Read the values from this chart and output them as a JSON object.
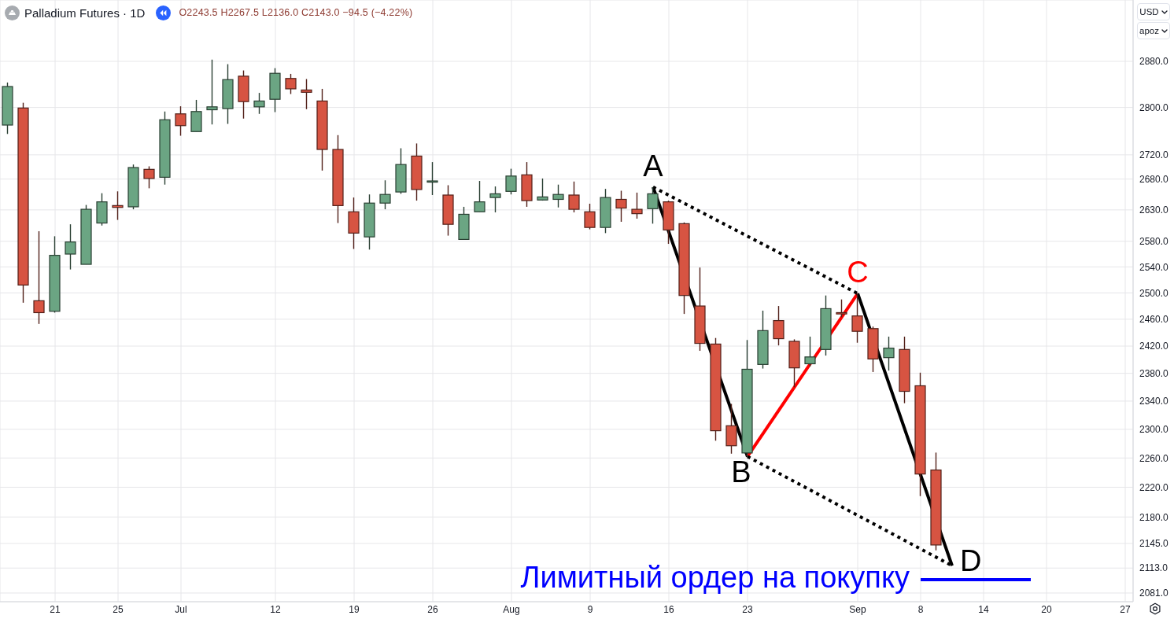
{
  "chart_data": {
    "type": "candlestick",
    "title": "Palladium Futures · 1D",
    "subtitle": "O2243.5 H2267.5 L2136.0 C2143.0 −94.5 (−4.22%)",
    "categories": [
      null,
      null,
      null,
      "21",
      null,
      null,
      null,
      "25",
      null,
      null,
      null,
      "Jul",
      null,
      null,
      null,
      null,
      null,
      "12",
      null,
      null,
      null,
      null,
      "19",
      null,
      null,
      null,
      null,
      "26",
      null,
      null,
      null,
      null,
      "Aug",
      null,
      null,
      null,
      null,
      "9",
      null,
      null,
      null,
      null,
      "16",
      null,
      null,
      null,
      null,
      "23",
      null,
      null,
      null,
      null,
      null,
      null,
      "Sep",
      null,
      null,
      null,
      "8",
      null,
      null,
      null,
      "14",
      null,
      null,
      null,
      "20",
      null,
      null,
      null,
      null,
      "27"
    ],
    "ohlc": [
      [
        2770,
        2843,
        2755,
        2836
      ],
      [
        2799,
        2808,
        2485,
        2512
      ],
      [
        2488,
        2596,
        2453,
        2470
      ],
      [
        2472,
        2588,
        2470,
        2558
      ],
      [
        2560,
        2607,
        2536,
        2579
      ],
      [
        2544,
        2638,
        2544,
        2631
      ],
      [
        2609,
        2657,
        2605,
        2643
      ],
      [
        2637,
        2660,
        2614,
        2634
      ],
      [
        2635,
        2704,
        2631,
        2699
      ],
      [
        2696,
        2701,
        2665,
        2681
      ],
      [
        2683,
        2793,
        2671,
        2779
      ],
      [
        2789,
        2802,
        2752,
        2769
      ],
      [
        2759,
        2813,
        2759,
        2793
      ],
      [
        2796,
        2883,
        2771,
        2801
      ],
      [
        2798,
        2875,
        2772,
        2848
      ],
      [
        2854,
        2864,
        2781,
        2810
      ],
      [
        2801,
        2825,
        2789,
        2811
      ],
      [
        2814,
        2868,
        2792,
        2859
      ],
      [
        2850,
        2858,
        2823,
        2832
      ],
      [
        2830,
        2849,
        2797,
        2826
      ],
      [
        2811,
        2832,
        2694,
        2729
      ],
      [
        2729,
        2753,
        2609,
        2637
      ],
      [
        2627,
        2650,
        2568,
        2593
      ],
      [
        2587,
        2655,
        2567,
        2641
      ],
      [
        2641,
        2678,
        2631,
        2655
      ],
      [
        2659,
        2731,
        2656,
        2704
      ],
      [
        2718,
        2739,
        2645,
        2663
      ],
      [
        2675,
        2708,
        2654,
        2677
      ],
      [
        2654,
        2670,
        2589,
        2607
      ],
      [
        2583,
        2635,
        2583,
        2623
      ],
      [
        2627,
        2677,
        2627,
        2643
      ],
      [
        2650,
        2668,
        2626,
        2656
      ],
      [
        2660,
        2697,
        2655,
        2685
      ],
      [
        2687,
        2708,
        2635,
        2645
      ],
      [
        2646,
        2681,
        2645,
        2651
      ],
      [
        2647,
        2671,
        2634,
        2655
      ],
      [
        2654,
        2676,
        2626,
        2631
      ],
      [
        2627,
        2640,
        2599,
        2602
      ],
      [
        2602,
        2664,
        2593,
        2650
      ],
      [
        2647,
        2661,
        2611,
        2633
      ],
      [
        2631,
        2658,
        2616,
        2624
      ],
      [
        2632,
        2667,
        2608,
        2656
      ],
      [
        2643,
        2645,
        2576,
        2598
      ],
      [
        2608,
        2610,
        2468,
        2496
      ],
      [
        2480,
        2539,
        2413,
        2424
      ],
      [
        2423,
        2432,
        2284,
        2298
      ],
      [
        2305,
        2336,
        2266,
        2277
      ],
      [
        2267,
        2429,
        2262,
        2386
      ],
      [
        2393,
        2473,
        2387,
        2443
      ],
      [
        2458,
        2480,
        2421,
        2431
      ],
      [
        2427,
        2430,
        2360,
        2388
      ],
      [
        2394,
        2434,
        2390,
        2404
      ],
      [
        2415,
        2496,
        2406,
        2476
      ],
      [
        2470,
        2490,
        2463,
        2468
      ],
      [
        2465,
        2499,
        2425,
        2442
      ],
      [
        2446,
        2449,
        2382,
        2401
      ],
      [
        2403,
        2434,
        2384,
        2417
      ],
      [
        2415,
        2434,
        2337,
        2354
      ],
      [
        2362,
        2381,
        2208,
        2238
      ],
      [
        2243.5,
        2267.5,
        2136.0,
        2143.0
      ],
      null,
      null,
      null,
      null,
      null,
      null,
      null,
      null,
      null,
      null,
      null,
      null
    ],
    "colors": [
      "#6ba583",
      "#d75442",
      "#d75442",
      "#6ba583",
      "#6ba583",
      "#6ba583",
      "#6ba583",
      "#d75442",
      "#6ba583",
      "#d75442",
      "#6ba583",
      "#d75442",
      "#6ba583",
      "#6ba583",
      "#6ba583",
      "#d75442",
      "#6ba583",
      "#6ba583",
      "#d75442",
      "#d75442",
      "#d75442",
      "#d75442",
      "#d75442",
      "#6ba583",
      "#6ba583",
      "#6ba583",
      "#d75442",
      "#6ba583",
      "#d75442",
      "#6ba583",
      "#6ba583",
      "#6ba583",
      "#6ba583",
      "#d75442",
      "#6ba583",
      "#6ba583",
      "#d75442",
      "#d75442",
      "#6ba583",
      "#d75442",
      "#d75442",
      "#6ba583",
      "#d75442",
      "#d75442",
      "#d75442",
      "#d75442",
      "#d75442",
      "#6ba583",
      "#6ba583",
      "#d75442",
      "#d75442",
      "#6ba583",
      "#6ba583",
      "#d75442",
      "#d75442",
      "#d75442",
      "#6ba583",
      "#d75442",
      "#d75442",
      "#d75442",
      null,
      null,
      null,
      null,
      null,
      null,
      null,
      null,
      null,
      null,
      null,
      null
    ],
    "series": [
      {
        "type": "line",
        "color": "#000000",
        "line_style": "solid",
        "values": [
          null,
          null,
          null,
          null,
          null,
          null,
          null,
          null,
          null,
          null,
          null,
          null,
          null,
          null,
          null,
          null,
          null,
          null,
          null,
          null,
          null,
          null,
          null,
          null,
          null,
          null,
          null,
          null,
          null,
          null,
          null,
          null,
          null,
          null,
          null,
          null,
          null,
          null,
          null,
          null,
          null,
          2667,
          null,
          null,
          null,
          null,
          null,
          2262,
          null,
          null,
          null,
          null,
          null,
          null,
          null,
          null,
          null,
          null,
          null,
          null,
          null,
          null,
          null,
          null,
          null,
          null,
          null,
          null,
          null,
          null,
          null,
          null
        ],
        "value_labels": [
          null,
          null,
          null,
          null,
          null,
          null,
          null,
          null,
          null,
          null,
          null,
          null,
          null,
          null,
          null,
          null,
          null,
          null,
          null,
          null,
          null,
          null,
          null,
          null,
          null,
          null,
          null,
          null,
          null,
          null,
          null,
          null,
          null,
          null,
          null,
          null,
          null,
          null,
          null,
          null,
          null,
          "A",
          null,
          null,
          null,
          null,
          null,
          "B",
          null,
          null,
          null,
          null,
          null,
          null,
          null,
          null,
          null,
          null,
          null,
          null,
          null,
          null,
          null,
          null,
          null,
          null,
          null,
          null,
          null,
          null,
          null,
          null
        ]
      },
      {
        "type": "line",
        "color": "#ff0000",
        "line_style": "solid",
        "values": [
          null,
          null,
          null,
          null,
          null,
          null,
          null,
          null,
          null,
          null,
          null,
          null,
          null,
          null,
          null,
          null,
          null,
          null,
          null,
          null,
          null,
          null,
          null,
          null,
          null,
          null,
          null,
          null,
          null,
          null,
          null,
          null,
          null,
          null,
          null,
          null,
          null,
          null,
          null,
          null,
          null,
          null,
          null,
          null,
          null,
          null,
          null,
          2262,
          null,
          null,
          null,
          null,
          null,
          null,
          2499,
          null,
          null,
          null,
          null,
          null,
          null,
          null,
          null,
          null,
          null,
          null,
          null,
          null,
          null,
          null,
          null,
          null
        ],
        "value_labels": [
          null,
          null,
          null,
          null,
          null,
          null,
          null,
          null,
          null,
          null,
          null,
          null,
          null,
          null,
          null,
          null,
          null,
          null,
          null,
          null,
          null,
          null,
          null,
          null,
          null,
          null,
          null,
          null,
          null,
          null,
          null,
          null,
          null,
          null,
          null,
          null,
          null,
          null,
          null,
          null,
          null,
          null,
          null,
          null,
          null,
          null,
          null,
          null,
          null,
          null,
          null,
          null,
          null,
          null,
          "C",
          null,
          null,
          null,
          null,
          null,
          null,
          null,
          null,
          null,
          null,
          null,
          null,
          null,
          null,
          null,
          null,
          null
        ]
      },
      {
        "type": "line",
        "color": "#000000",
        "line_style": "solid",
        "values": [
          null,
          null,
          null,
          null,
          null,
          null,
          null,
          null,
          null,
          null,
          null,
          null,
          null,
          null,
          null,
          null,
          null,
          null,
          null,
          null,
          null,
          null,
          null,
          null,
          null,
          null,
          null,
          null,
          null,
          null,
          null,
          null,
          null,
          null,
          null,
          null,
          null,
          null,
          null,
          null,
          null,
          null,
          null,
          null,
          null,
          null,
          null,
          null,
          null,
          null,
          null,
          null,
          null,
          null,
          2499,
          null,
          null,
          null,
          null,
          null,
          2116,
          null,
          null,
          null,
          null,
          null,
          null,
          null,
          null,
          null,
          null,
          null
        ],
        "value_labels": [
          null,
          null,
          null,
          null,
          null,
          null,
          null,
          null,
          null,
          null,
          null,
          null,
          null,
          null,
          null,
          null,
          null,
          null,
          null,
          null,
          null,
          null,
          null,
          null,
          null,
          null,
          null,
          null,
          null,
          null,
          null,
          null,
          null,
          null,
          null,
          null,
          null,
          null,
          null,
          null,
          null,
          null,
          null,
          null,
          null,
          null,
          null,
          null,
          null,
          null,
          null,
          null,
          null,
          null,
          null,
          null,
          null,
          null,
          null,
          null,
          "D",
          null,
          null,
          null,
          null,
          null,
          null,
          null,
          null,
          null,
          null,
          null
        ]
      },
      {
        "type": "line",
        "color": "#000000",
        "line_style": "dotted",
        "values": [
          null,
          null,
          null,
          null,
          null,
          null,
          null,
          null,
          null,
          null,
          null,
          null,
          null,
          null,
          null,
          null,
          null,
          null,
          null,
          null,
          null,
          null,
          null,
          null,
          null,
          null,
          null,
          null,
          null,
          null,
          null,
          null,
          null,
          null,
          null,
          null,
          null,
          null,
          null,
          null,
          null,
          2667,
          null,
          null,
          null,
          null,
          null,
          null,
          null,
          null,
          null,
          null,
          null,
          null,
          2499,
          null,
          null,
          null,
          null,
          null,
          null,
          null,
          null,
          null,
          null,
          null,
          null,
          null,
          null,
          null,
          null,
          null
        ]
      },
      {
        "type": "line",
        "color": "#000000",
        "line_style": "dotted",
        "values": [
          null,
          null,
          null,
          null,
          null,
          null,
          null,
          null,
          null,
          null,
          null,
          null,
          null,
          null,
          null,
          null,
          null,
          null,
          null,
          null,
          null,
          null,
          null,
          null,
          null,
          null,
          null,
          null,
          null,
          null,
          null,
          null,
          null,
          null,
          null,
          null,
          null,
          null,
          null,
          null,
          null,
          null,
          null,
          null,
          null,
          null,
          null,
          2262,
          null,
          null,
          null,
          null,
          null,
          null,
          null,
          null,
          null,
          null,
          null,
          null,
          2116,
          null,
          null,
          null,
          null,
          null,
          null,
          null,
          null,
          null,
          null,
          null
        ]
      },
      {
        "type": "line",
        "name": "Лимитный ордер на покупку",
        "color": "#0000ff",
        "line_style": "solid",
        "values": [
          null,
          null,
          null,
          null,
          null,
          null,
          null,
          null,
          null,
          null,
          null,
          null,
          null,
          null,
          null,
          null,
          null,
          null,
          null,
          null,
          null,
          null,
          null,
          null,
          null,
          null,
          null,
          null,
          null,
          null,
          null,
          null,
          null,
          null,
          null,
          null,
          null,
          null,
          null,
          null,
          null,
          null,
          null,
          null,
          null,
          null,
          null,
          null,
          null,
          null,
          null,
          null,
          null,
          null,
          null,
          null,
          null,
          null,
          2098,
          null,
          null,
          null,
          null,
          null,
          null,
          2098,
          null,
          null,
          null,
          null,
          null,
          null
        ]
      }
    ],
    "ylim": [
      2070,
      2990
    ],
    "yticks": [
      {
        "value": 2081,
        "label": "2081.0"
      },
      {
        "value": 2113,
        "label": "2113.0"
      },
      {
        "value": 2145,
        "label": "2145.0"
      },
      {
        "value": 2180,
        "label": "2180.0"
      },
      {
        "value": 2220,
        "label": "2220.0"
      },
      {
        "value": 2260,
        "label": "2260.0"
      },
      {
        "value": 2300,
        "label": "2300.0"
      },
      {
        "value": 2340,
        "label": "2340.0"
      },
      {
        "value": 2380,
        "label": "2380.0"
      },
      {
        "value": 2420,
        "label": "2420.0"
      },
      {
        "value": 2460,
        "label": "2460.0"
      },
      {
        "value": 2500,
        "label": "2500.0"
      },
      {
        "value": 2540,
        "label": "2540.0"
      },
      {
        "value": 2580,
        "label": "2580.0"
      },
      {
        "value": 2630,
        "label": "2630.0"
      },
      {
        "value": 2680,
        "label": "2680.0"
      },
      {
        "value": 2720,
        "label": "2720.0"
      },
      {
        "value": 2800,
        "label": "2800.0"
      },
      {
        "value": 2880,
        "label": "2880.0"
      }
    ],
    "log": true,
    "grid": true,
    "annotations": [
      "USD",
      "apoz"
    ]
  }
}
